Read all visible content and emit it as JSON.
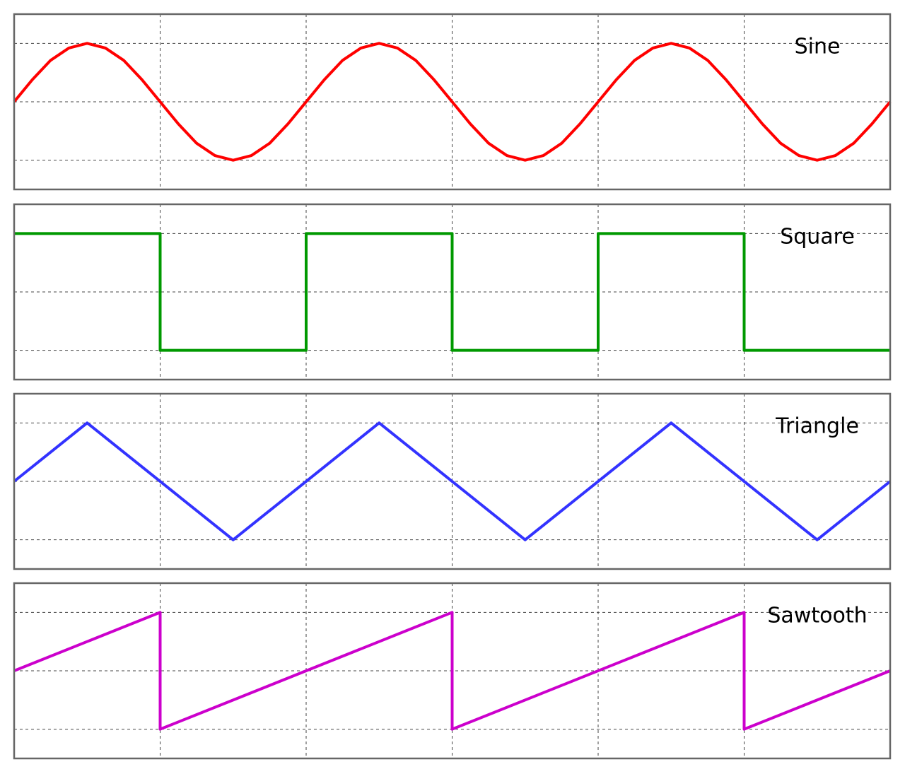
{
  "chart_data": [
    {
      "type": "line",
      "title": "Sine",
      "color": "#ff0000",
      "x": [
        0,
        0.125,
        0.25,
        0.375,
        0.5,
        0.625,
        0.75,
        0.875,
        1,
        1.125,
        1.25,
        1.375,
        1.5,
        1.625,
        1.75,
        1.875,
        2,
        2.125,
        2.25,
        2.375,
        2.5,
        2.625,
        2.75,
        2.875,
        3,
        3.125,
        3.25,
        3.375,
        3.5,
        3.625,
        3.75,
        3.875,
        4,
        4.125,
        4.25,
        4.375,
        4.5,
        4.625,
        4.75,
        4.875,
        5,
        5.125,
        5.25,
        5.375,
        5.5,
        5.625,
        5.75,
        5.875,
        6
      ],
      "values": [
        0,
        0.38,
        0.71,
        0.92,
        1,
        0.92,
        0.71,
        0.38,
        0,
        -0.38,
        -0.71,
        -0.92,
        -1,
        -0.92,
        -0.71,
        -0.38,
        0,
        0.38,
        0.71,
        0.92,
        1,
        0.92,
        0.71,
        0.38,
        0,
        -0.38,
        -0.71,
        -0.92,
        -1,
        -0.92,
        -0.71,
        -0.38,
        0,
        0.38,
        0.71,
        0.92,
        1,
        0.92,
        0.71,
        0.38,
        0,
        -0.38,
        -0.71,
        -0.92,
        -1,
        -0.92,
        -0.71,
        -0.38,
        0
      ],
      "xlim": [
        0,
        6
      ],
      "xticks": [
        1,
        2,
        3,
        4,
        5
      ],
      "ylim": [
        -1.5,
        1.5
      ],
      "yticks": [
        -1,
        0,
        1
      ],
      "grid": true
    },
    {
      "type": "line",
      "title": "Square",
      "color": "#009900",
      "x": [
        0,
        1,
        1,
        2,
        2,
        3,
        3,
        4,
        4,
        5,
        5,
        6
      ],
      "values": [
        1,
        1,
        -1,
        -1,
        1,
        1,
        -1,
        -1,
        1,
        1,
        -1,
        -1
      ],
      "xlim": [
        0,
        6
      ],
      "xticks": [
        1,
        2,
        3,
        4,
        5
      ],
      "ylim": [
        -1.5,
        1.5
      ],
      "yticks": [
        -1,
        0,
        1
      ],
      "grid": true
    },
    {
      "type": "line",
      "title": "Triangle",
      "color": "#3333ff",
      "x": [
        0,
        0.5,
        1.5,
        2.5,
        3.5,
        4.5,
        5.5,
        6
      ],
      "values": [
        0,
        1,
        -1,
        1,
        -1,
        1,
        -1,
        0
      ],
      "xlim": [
        0,
        6
      ],
      "xticks": [
        1,
        2,
        3,
        4,
        5
      ],
      "ylim": [
        -1.5,
        1.5
      ],
      "yticks": [
        -1,
        0,
        1
      ],
      "grid": true
    },
    {
      "type": "line",
      "title": "Sawtooth",
      "color": "#cc00cc",
      "x": [
        0,
        1,
        1,
        3,
        3,
        5,
        5,
        6
      ],
      "values": [
        0,
        1,
        -1,
        1,
        -1,
        1,
        -1,
        0
      ],
      "xlim": [
        0,
        6
      ],
      "xticks": [
        1,
        2,
        3,
        4,
        5
      ],
      "ylim": [
        -1.5,
        1.5
      ],
      "yticks": [
        -1,
        0,
        1
      ],
      "grid": true
    }
  ]
}
